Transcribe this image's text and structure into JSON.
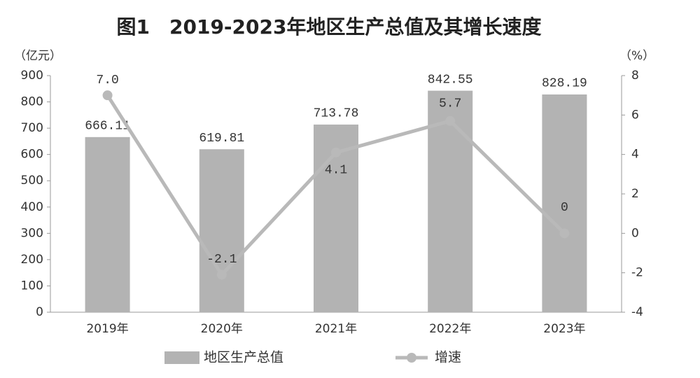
{
  "chart_data": {
    "type": "bar",
    "title": "图1　2019-2023年地区生产总值及其增长速度",
    "y_label": "（亿元）",
    "y2_label": "（%）",
    "categories": [
      "2019年",
      "2020年",
      "2021年",
      "2022年",
      "2023年"
    ],
    "series": [
      {
        "name": "地区生产总值",
        "type": "bar",
        "color": "#b3b3b3",
        "values": [
          666.11,
          619.81,
          713.78,
          842.55,
          828.19
        ]
      },
      {
        "name": "增速",
        "type": "line",
        "axis": "y2",
        "color": "#b9b9b9",
        "values": [
          7.0,
          -2.1,
          4.1,
          5.7,
          0
        ],
        "value_labels": [
          "7.0",
          "-2.1",
          "4.1",
          "5.7",
          "0"
        ]
      }
    ],
    "ylim": [
      0,
      900
    ],
    "yticks": [
      0,
      100,
      200,
      300,
      400,
      500,
      600,
      700,
      800,
      900
    ],
    "y2lim": [
      -4,
      8
    ],
    "y2ticks": [
      -4,
      -2,
      0,
      2,
      4,
      6,
      8
    ],
    "legend": "bottom"
  }
}
